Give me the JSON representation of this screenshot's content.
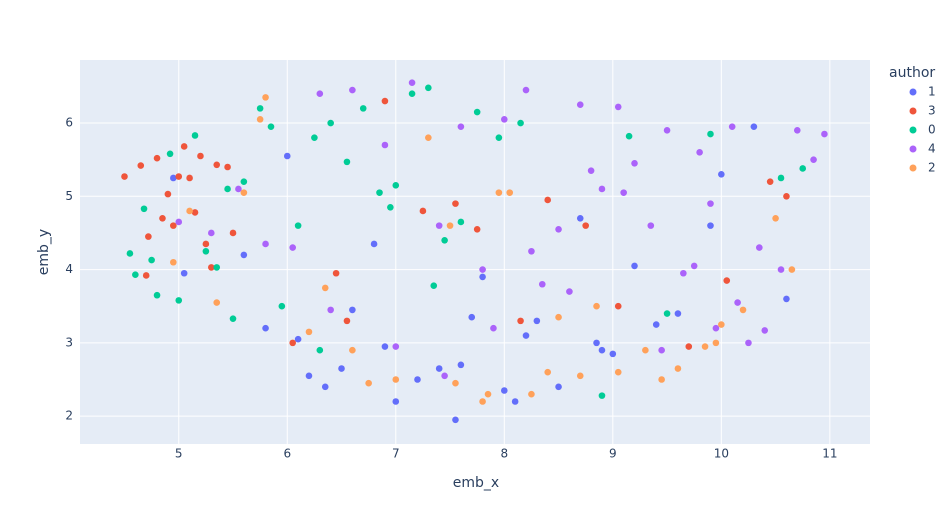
{
  "chart_data": {
    "type": "scatter",
    "xlabel": "emb_x",
    "ylabel": "emb_y",
    "legend_title": "author",
    "xlim": [
      4.09,
      11.37
    ],
    "ylim": [
      1.62,
      6.86
    ],
    "xticks": [
      5,
      6,
      7,
      8,
      9,
      10,
      11
    ],
    "yticks": [
      2,
      3,
      4,
      5,
      6
    ],
    "grid": true,
    "legend_position": "right",
    "series": [
      {
        "name": "1",
        "color": "#636efa",
        "x": [
          4.95,
          5.05,
          5.8,
          6.1,
          6.2,
          6.35,
          6.5,
          6.6,
          6.9,
          7.0,
          7.2,
          7.4,
          7.55,
          7.7,
          7.8,
          8.0,
          8.1,
          8.2,
          8.3,
          8.5,
          8.7,
          8.85,
          9.0,
          9.2,
          9.4,
          9.6,
          9.9,
          10.0,
          10.3,
          10.6,
          6.8,
          7.6,
          8.9,
          6.0,
          5.6
        ],
        "values": [
          5.25,
          3.95,
          3.2,
          3.05,
          2.55,
          2.4,
          2.65,
          3.45,
          2.95,
          2.2,
          2.5,
          2.65,
          1.95,
          3.35,
          3.9,
          2.35,
          2.2,
          3.1,
          3.3,
          2.4,
          4.7,
          3.0,
          2.85,
          4.05,
          3.25,
          3.4,
          4.6,
          5.3,
          5.95,
          3.6,
          4.35,
          2.7,
          2.9,
          5.55,
          4.2
        ]
      },
      {
        "name": "3",
        "color": "#EF553B",
        "x": [
          4.5,
          4.65,
          4.72,
          4.8,
          4.85,
          4.9,
          5.0,
          5.05,
          5.1,
          5.2,
          5.25,
          5.35,
          5.45,
          4.7,
          4.95,
          5.15,
          5.3,
          6.05,
          6.9,
          7.25,
          7.55,
          6.55,
          8.15,
          8.4,
          8.75,
          9.05,
          9.7,
          10.05,
          10.45,
          10.6,
          6.45,
          7.75,
          5.5
        ],
        "values": [
          5.27,
          5.42,
          4.45,
          5.52,
          4.7,
          5.03,
          5.27,
          5.68,
          5.25,
          5.55,
          4.35,
          5.43,
          5.4,
          3.92,
          4.6,
          4.78,
          4.03,
          3.0,
          6.3,
          4.8,
          4.9,
          3.3,
          3.3,
          4.95,
          4.6,
          3.5,
          2.95,
          3.85,
          5.2,
          5.0,
          3.95,
          4.55,
          4.5
        ]
      },
      {
        "name": "0",
        "color": "#00cc96",
        "x": [
          4.55,
          4.6,
          4.68,
          4.75,
          4.8,
          4.92,
          5.0,
          5.15,
          5.25,
          5.35,
          5.5,
          5.6,
          5.75,
          5.85,
          5.95,
          6.1,
          6.25,
          6.4,
          6.55,
          6.7,
          6.85,
          7.0,
          7.15,
          7.3,
          7.45,
          7.6,
          7.75,
          7.95,
          8.15,
          9.15,
          9.5,
          9.9,
          10.55,
          10.75,
          6.3,
          6.95,
          8.9,
          7.35,
          5.45
        ],
        "values": [
          4.22,
          3.93,
          4.83,
          4.13,
          3.65,
          5.58,
          3.58,
          5.83,
          4.25,
          4.03,
          3.33,
          5.2,
          6.2,
          5.95,
          3.5,
          4.6,
          5.8,
          6.0,
          5.47,
          6.2,
          5.05,
          5.15,
          6.4,
          6.48,
          4.4,
          4.65,
          6.15,
          5.8,
          6.0,
          5.82,
          3.4,
          5.85,
          5.25,
          5.38,
          2.9,
          4.85,
          2.28,
          3.78,
          5.1
        ]
      },
      {
        "name": "4",
        "color": "#ab63fa",
        "x": [
          5.0,
          5.3,
          5.55,
          5.8,
          6.05,
          6.3,
          6.6,
          6.9,
          7.15,
          7.4,
          7.6,
          7.8,
          8.0,
          8.2,
          8.35,
          8.5,
          8.7,
          8.9,
          9.05,
          9.2,
          9.35,
          9.5,
          9.65,
          9.8,
          9.95,
          10.1,
          10.25,
          10.4,
          10.55,
          10.7,
          10.85,
          10.95,
          10.35,
          10.15,
          9.75,
          9.45,
          9.1,
          8.6,
          8.25,
          7.9,
          7.45,
          7.0,
          6.4,
          8.8,
          9.9
        ],
        "values": [
          4.65,
          4.5,
          5.1,
          4.35,
          4.3,
          6.4,
          6.45,
          5.7,
          6.55,
          4.6,
          5.95,
          4.0,
          6.05,
          6.45,
          3.8,
          4.55,
          6.25,
          5.1,
          6.22,
          5.45,
          4.6,
          5.9,
          3.95,
          5.6,
          3.2,
          5.95,
          3.0,
          3.17,
          4.0,
          5.9,
          5.5,
          5.85,
          4.3,
          3.55,
          4.05,
          2.9,
          5.05,
          3.7,
          4.25,
          3.2,
          2.55,
          2.95,
          3.45,
          5.35,
          4.9
        ]
      },
      {
        "name": "2",
        "color": "#FFA15A",
        "x": [
          4.95,
          5.1,
          5.35,
          5.6,
          5.75,
          5.8,
          6.2,
          6.35,
          6.6,
          6.75,
          7.0,
          7.3,
          7.55,
          7.8,
          7.85,
          8.05,
          8.25,
          8.5,
          8.7,
          8.85,
          9.05,
          9.3,
          9.45,
          9.6,
          9.85,
          9.95,
          10.0,
          10.2,
          10.5,
          10.65,
          7.95,
          7.5,
          8.4
        ],
        "values": [
          4.1,
          4.8,
          3.55,
          5.05,
          6.05,
          6.35,
          3.15,
          3.75,
          2.9,
          2.45,
          2.5,
          5.8,
          2.45,
          2.2,
          2.3,
          5.05,
          2.3,
          3.35,
          2.55,
          3.5,
          2.6,
          2.9,
          2.5,
          2.65,
          2.95,
          3.0,
          3.25,
          3.45,
          4.7,
          4.0,
          5.05,
          4.6,
          2.6
        ]
      }
    ]
  }
}
